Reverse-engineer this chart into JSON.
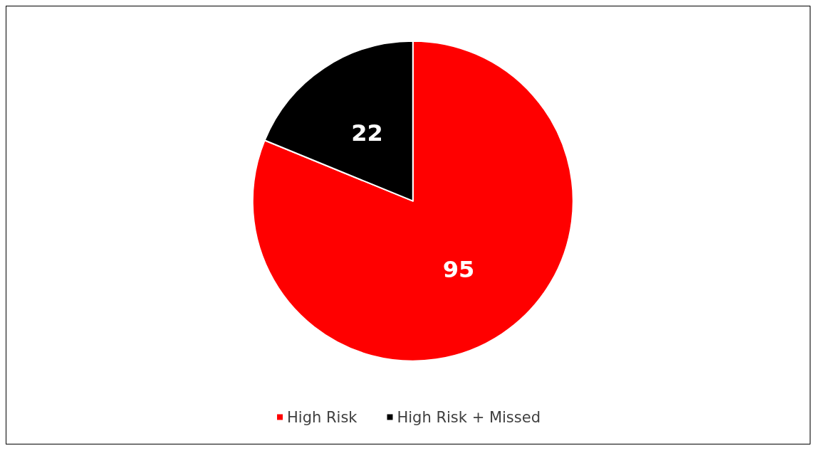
{
  "chart_data": {
    "type": "pie",
    "categories": [
      "High Risk",
      "High Risk + Missed"
    ],
    "values": [
      95,
      22
    ],
    "colors": [
      "#ff0000",
      "#000000"
    ],
    "data_labels": true,
    "legend": "bottom"
  }
}
